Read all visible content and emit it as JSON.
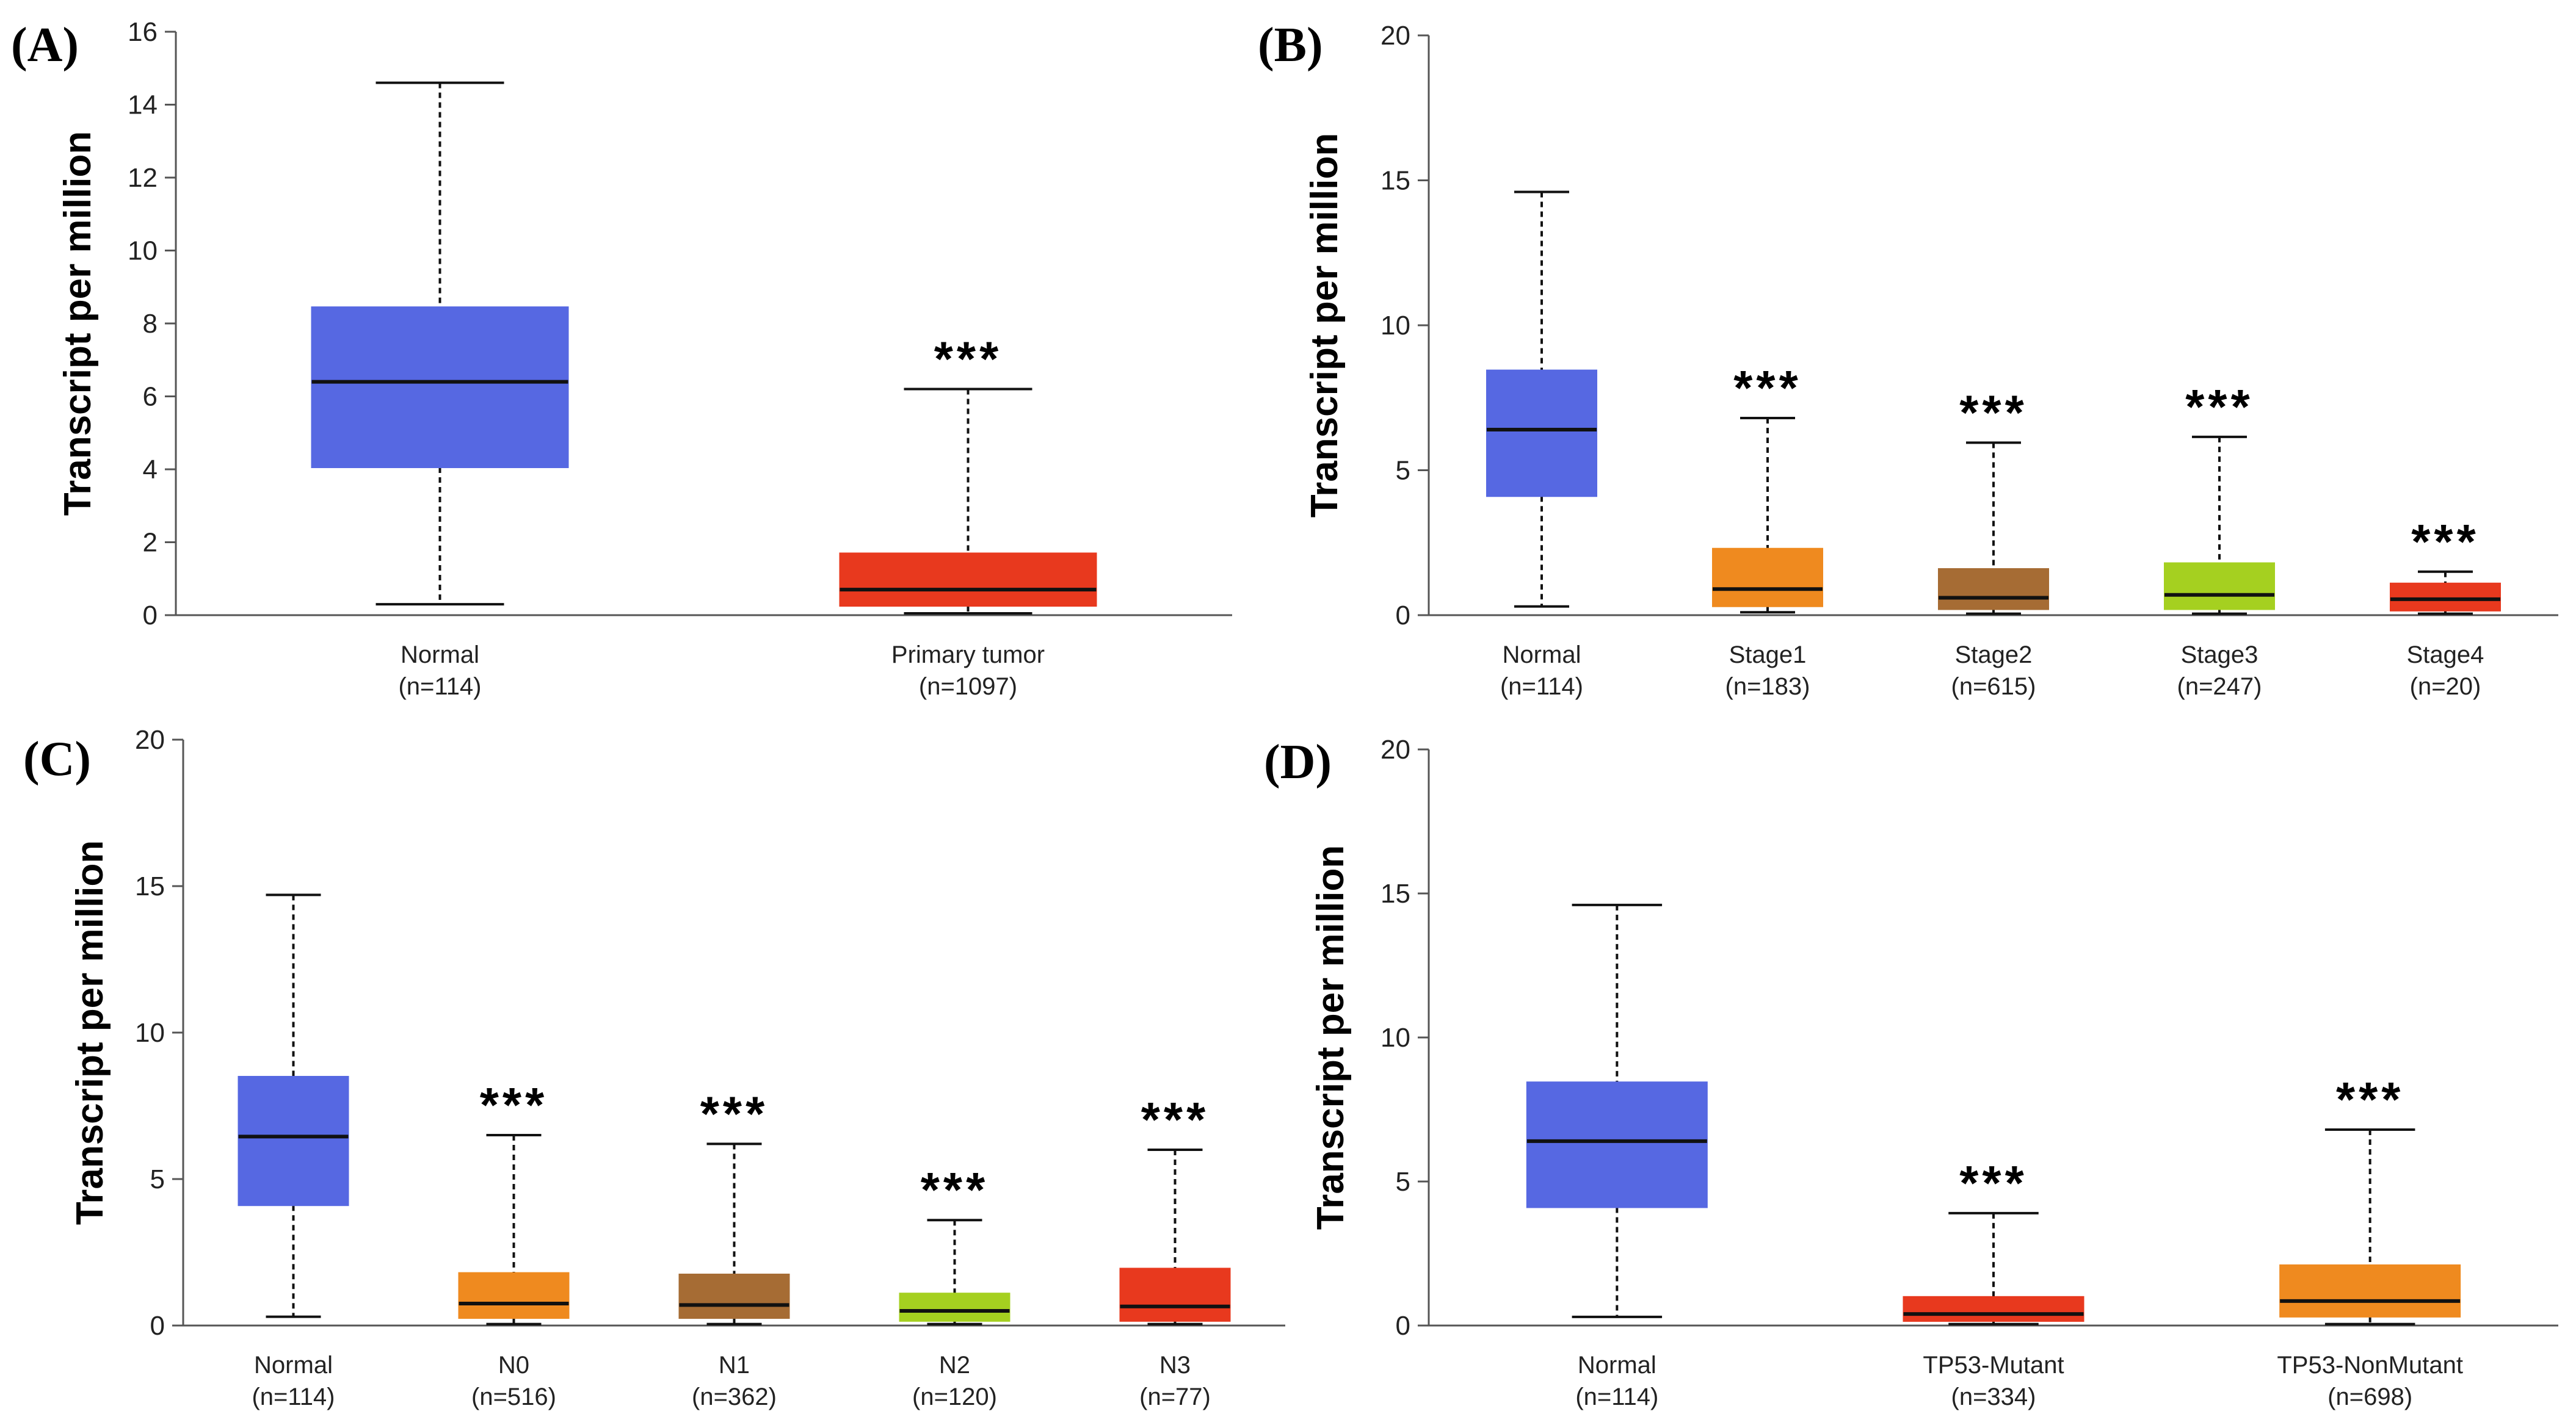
{
  "chart_data": [
    {
      "type": "box",
      "panel_label": "(A)",
      "ylabel": "Transcript per million",
      "ylim": [
        0,
        16
      ],
      "yticks": [
        0,
        2,
        4,
        6,
        8,
        10,
        12,
        14,
        16
      ],
      "categories": [
        {
          "name": "Normal",
          "n": "(n=114)",
          "color": "#5668e2",
          "min": 0.3,
          "q1": 4.05,
          "median": 6.4,
          "q3": 8.45,
          "max": 14.6,
          "sig": ""
        },
        {
          "name": "Primary tumor",
          "n": "(n=1097)",
          "color": "#e8391e",
          "min": 0.05,
          "q1": 0.25,
          "median": 0.7,
          "q3": 1.7,
          "max": 6.2,
          "sig": "***"
        }
      ]
    },
    {
      "type": "box",
      "panel_label": "(B)",
      "ylabel": "Transcript per million",
      "ylim": [
        0,
        20
      ],
      "yticks": [
        0,
        5,
        10,
        15,
        20
      ],
      "categories": [
        {
          "name": "Normal",
          "n": "(n=114)",
          "color": "#5668e2",
          "min": 0.3,
          "q1": 4.1,
          "median": 6.4,
          "q3": 8.45,
          "max": 14.6,
          "sig": ""
        },
        {
          "name": "Stage1",
          "n": "(n=183)",
          "color": "#ef8a1f",
          "min": 0.1,
          "q1": 0.3,
          "median": 0.9,
          "q3": 2.3,
          "max": 6.8,
          "sig": "***"
        },
        {
          "name": "Stage2",
          "n": "(n=615)",
          "color": "#a66c34",
          "min": 0.05,
          "q1": 0.2,
          "median": 0.6,
          "q3": 1.6,
          "max": 5.95,
          "sig": "***"
        },
        {
          "name": "Stage3",
          "n": "(n=247)",
          "color": "#a5d020",
          "min": 0.05,
          "q1": 0.2,
          "median": 0.7,
          "q3": 1.8,
          "max": 6.15,
          "sig": "***"
        },
        {
          "name": "Stage4",
          "n": "(n=20)",
          "color": "#e8391e",
          "min": 0.05,
          "q1": 0.15,
          "median": 0.55,
          "q3": 1.1,
          "max": 1.5,
          "sig": "***"
        }
      ]
    },
    {
      "type": "box",
      "panel_label": "(C)",
      "ylabel": "Transcript per million",
      "ylim": [
        0,
        20
      ],
      "yticks": [
        0,
        5,
        10,
        15,
        20
      ],
      "categories": [
        {
          "name": "Normal",
          "n": "(n=114)",
          "color": "#5668e2",
          "min": 0.3,
          "q1": 4.1,
          "median": 6.45,
          "q3": 8.5,
          "max": 14.7,
          "sig": ""
        },
        {
          "name": "N0",
          "n": "(n=516)",
          "color": "#ef8a1f",
          "min": 0.05,
          "q1": 0.25,
          "median": 0.75,
          "q3": 1.8,
          "max": 6.5,
          "sig": "***"
        },
        {
          "name": "N1",
          "n": "(n=362)",
          "color": "#a66c34",
          "min": 0.05,
          "q1": 0.25,
          "median": 0.7,
          "q3": 1.75,
          "max": 6.2,
          "sig": "***"
        },
        {
          "name": "N2",
          "n": "(n=120)",
          "color": "#a5d020",
          "min": 0.05,
          "q1": 0.15,
          "median": 0.5,
          "q3": 1.1,
          "max": 3.6,
          "sig": "***"
        },
        {
          "name": "N3",
          "n": "(n=77)",
          "color": "#e8391e",
          "min": 0.05,
          "q1": 0.15,
          "median": 0.65,
          "q3": 1.95,
          "max": 6.0,
          "sig": "***"
        }
      ]
    },
    {
      "type": "box",
      "panel_label": "(D)",
      "ylabel": "Transcript per million",
      "ylim": [
        0,
        20
      ],
      "yticks": [
        0,
        5,
        10,
        15,
        20
      ],
      "categories": [
        {
          "name": "Normal",
          "n": "(n=114)",
          "color": "#5668e2",
          "min": 0.3,
          "q1": 4.1,
          "median": 6.4,
          "q3": 8.45,
          "max": 14.6,
          "sig": ""
        },
        {
          "name": "TP53-Mutant",
          "n": "(n=334)",
          "color": "#e8391e",
          "min": 0.05,
          "q1": 0.15,
          "median": 0.4,
          "q3": 1.0,
          "max": 3.9,
          "sig": "***"
        },
        {
          "name": "TP53-NonMutant",
          "n": "(n=698)",
          "color": "#ef8a1f",
          "min": 0.05,
          "q1": 0.3,
          "median": 0.85,
          "q3": 2.1,
          "max": 6.8,
          "sig": "***"
        }
      ]
    }
  ]
}
